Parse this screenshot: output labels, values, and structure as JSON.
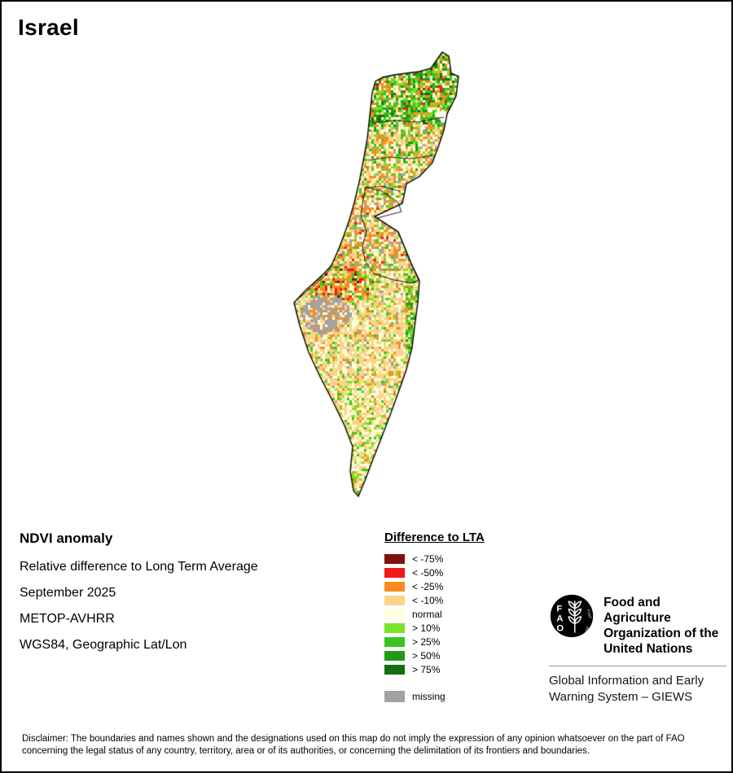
{
  "title": "Israel",
  "info": {
    "heading": "NDVI anomaly",
    "lines": [
      "Relative difference to Long Term Average",
      "September 2025",
      "METOP-AVHRR",
      "WGS84, Geographic Lat/Lon"
    ]
  },
  "legend": {
    "title": "Difference to LTA",
    "items": [
      {
        "label": "< -75%",
        "color": "#7f1010"
      },
      {
        "label": "< -50%",
        "color": "#f21818"
      },
      {
        "label": "< -25%",
        "color": "#f68d20"
      },
      {
        "label": "< -10%",
        "color": "#fcd488"
      },
      {
        "label": "normal",
        "color": "#feffdc"
      },
      {
        "label": "> 10%",
        "color": "#7be426"
      },
      {
        "label": "> 25%",
        "color": "#3cc41e"
      },
      {
        "label": "> 50%",
        "color": "#1f9a16"
      },
      {
        "label": "> 75%",
        "color": "#176c10"
      }
    ],
    "missing": {
      "label": "missing",
      "color": "#a3a3a3"
    }
  },
  "fao": {
    "logo_letters": [
      "F",
      "A",
      "O"
    ],
    "motto_lines": [
      "FIAT",
      "PANIS"
    ],
    "org_lines": [
      "Food and Agriculture",
      "Organization of the",
      "United Nations"
    ],
    "giews_lines": [
      "Global Information and Early",
      "Warning System – GIEWS"
    ]
  },
  "disclaimer": "Disclaimer: The boundaries and names shown and the designations used on this map do not imply the expression of any opinion whatsoever on the part of FAO concerning the legal status of any country, territory, area or of its authorities, or concerning the delimitation of its frontiers and boundaries."
}
